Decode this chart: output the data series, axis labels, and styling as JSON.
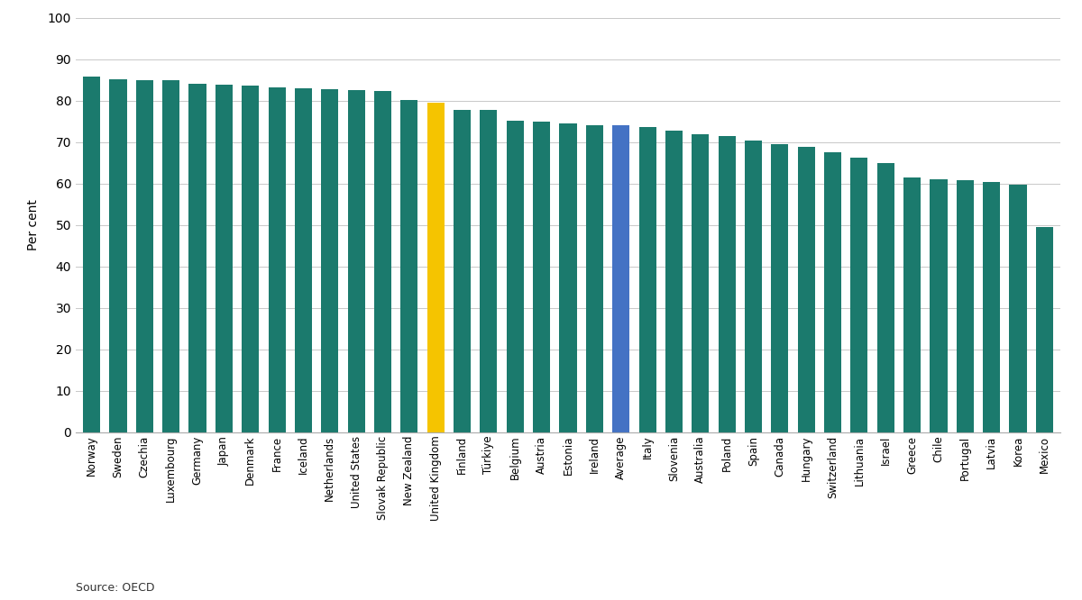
{
  "categories": [
    "Norway",
    "Sweden",
    "Czechia",
    "Luxembourg",
    "Germany",
    "Japan",
    "Denmark",
    "France",
    "Iceland",
    "Netherlands",
    "United States",
    "Slovak Republic",
    "New Zealand",
    "United Kingdom",
    "Finland",
    "Türkiye",
    "Belgium",
    "Austria",
    "Estonia",
    "Ireland",
    "Average",
    "Italy",
    "Slovenia",
    "Australia",
    "Poland",
    "Spain",
    "Canada",
    "Hungary",
    "Switzerland",
    "Lithuania",
    "Israel",
    "Greece",
    "Chile",
    "Portugal",
    "Latvia",
    "Korea",
    "Mexico"
  ],
  "values": [
    85.8,
    85.3,
    85.0,
    84.9,
    84.1,
    84.0,
    83.7,
    83.2,
    83.0,
    82.8,
    82.5,
    82.4,
    80.1,
    79.5,
    77.9,
    77.7,
    75.2,
    75.0,
    74.6,
    74.2,
    74.0,
    73.6,
    72.8,
    72.0,
    71.5,
    70.5,
    69.5,
    68.8,
    67.5,
    66.2,
    65.0,
    61.5,
    61.0,
    60.8,
    60.3,
    59.7,
    49.5
  ],
  "colors": [
    "#1b7a6d",
    "#1b7a6d",
    "#1b7a6d",
    "#1b7a6d",
    "#1b7a6d",
    "#1b7a6d",
    "#1b7a6d",
    "#1b7a6d",
    "#1b7a6d",
    "#1b7a6d",
    "#1b7a6d",
    "#1b7a6d",
    "#1b7a6d",
    "#f5c400",
    "#1b7a6d",
    "#1b7a6d",
    "#1b7a6d",
    "#1b7a6d",
    "#1b7a6d",
    "#1b7a6d",
    "#4472c4",
    "#1b7a6d",
    "#1b7a6d",
    "#1b7a6d",
    "#1b7a6d",
    "#1b7a6d",
    "#1b7a6d",
    "#1b7a6d",
    "#1b7a6d",
    "#1b7a6d",
    "#1b7a6d",
    "#1b7a6d",
    "#1b7a6d",
    "#1b7a6d",
    "#1b7a6d",
    "#1b7a6d",
    "#1b7a6d"
  ],
  "ylabel": "Per cent",
  "ylim": [
    0,
    100
  ],
  "yticks": [
    0,
    10,
    20,
    30,
    40,
    50,
    60,
    70,
    80,
    90,
    100
  ],
  "source": "Source: OECD",
  "background_color": "#ffffff",
  "grid_color": "#c8c8c8"
}
